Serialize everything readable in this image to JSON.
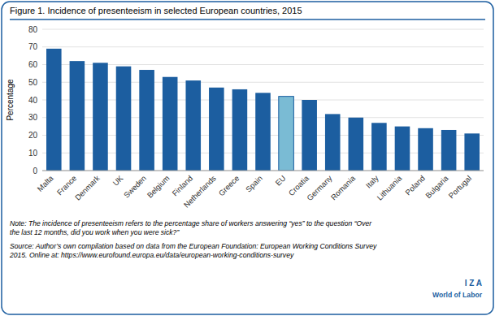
{
  "chart_data": {
    "type": "bar",
    "title": "Figure 1. Incidence of presenteeism in selected European countries, 2015",
    "categories": [
      "Malta",
      "France",
      "Denmark",
      "UK",
      "Sweden",
      "Belgium",
      "Finland",
      "Netherlands",
      "Greece",
      "Spain",
      "EU",
      "Croatia",
      "Germany",
      "Romania",
      "Italy",
      "Lithuania",
      "Poland",
      "Bulgaria",
      "Portugal"
    ],
    "values": [
      69,
      62,
      61,
      59,
      57,
      53,
      51,
      47,
      46,
      44,
      42,
      40,
      32,
      30,
      27,
      25,
      24,
      23,
      21
    ],
    "color": "#1C5EA0",
    "colors": [
      "#1C5EA0",
      "#1C5EA0",
      "#1C5EA0",
      "#1C5EA0",
      "#1C5EA0",
      "#1C5EA0",
      "#1C5EA0",
      "#1C5EA0",
      "#1C5EA0",
      "#1C5EA0",
      "#7ABBD4",
      "#1C5EA0",
      "#1C5EA0",
      "#1C5EA0",
      "#1C5EA0",
      "#1C5EA0",
      "#1C5EA0",
      "#1C5EA0",
      "#1C5EA0"
    ],
    "ylabel": "Percentage",
    "ylim": [
      0,
      80
    ],
    "yticks": [
      0,
      10,
      20,
      30,
      40,
      50,
      60,
      70,
      80
    ],
    "grid": true,
    "annotations": [
      "Note: The incidence of presenteeism refers to the percentage share of workers answering “yes” to the question “Over\nthe last 12 months, did you work when you were sick?”",
      "Source: Author’s own compilation based on data from the European Foundation: European Working Conditions Survey\n2015. Online at: https://www.eurofound.europa.eu/data/european-working-conditions-survey",
      "I Z A",
      "World of Labor"
    ]
  }
}
